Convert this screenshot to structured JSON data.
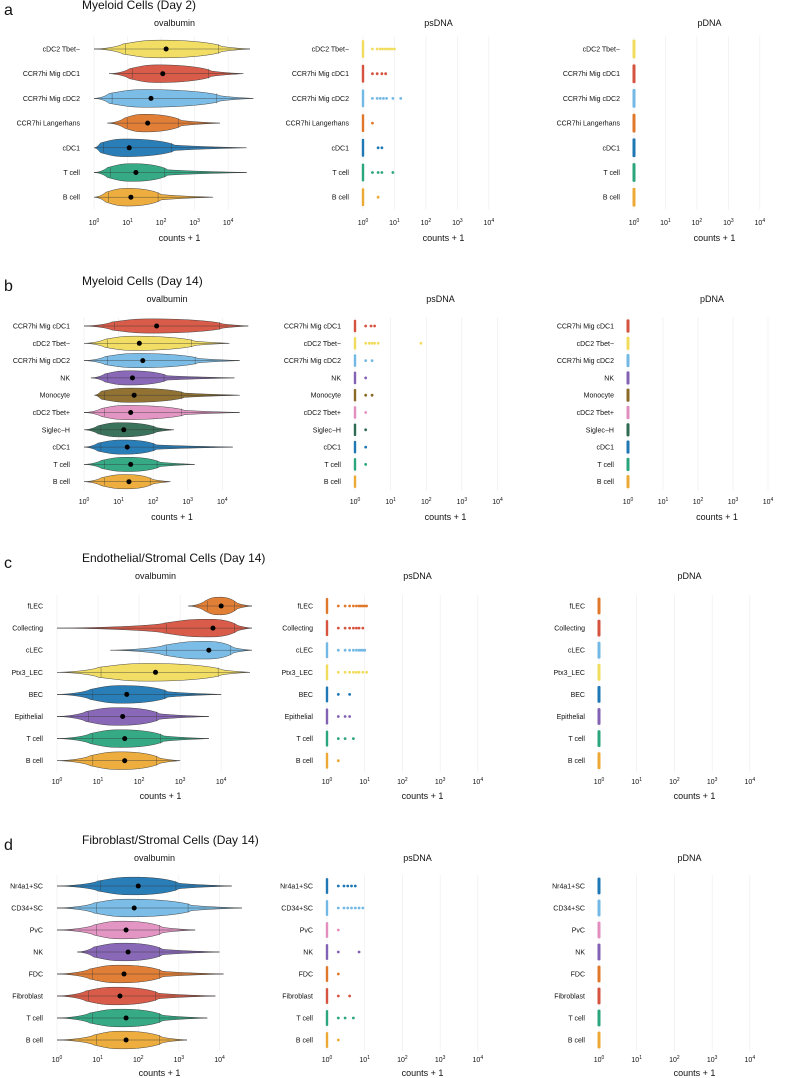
{
  "colors": {
    "yellow": "#f2dc5d",
    "red": "#d6533f",
    "sky": "#74b9e6",
    "orange": "#e0782c",
    "blue": "#1f77b4",
    "green": "#2aa57e",
    "gold": "#eca935",
    "purple": "#8361b3",
    "brown": "#8b6a28",
    "pink": "#e28fc0",
    "dkgreen": "#2f6a52"
  },
  "x_label": "counts + 1",
  "chart_data": [
    {
      "type": "violin",
      "panel_label": "a",
      "title": "Myeloid Cells (Day 2)",
      "xlabel": "counts + 1",
      "xscale": "log10",
      "categories": [
        "cDC2 Tbet−",
        "CCR7hi Mig cDC1",
        "CCR7hi Mig cDC2",
        "CCR7hi Langerhans",
        "cDC1",
        "T cell",
        "B cell"
      ],
      "category_colors": [
        "yellow",
        "red",
        "sky",
        "orange",
        "blue",
        "green",
        "gold"
      ],
      "subplots": [
        {
          "name": "ovalbumin",
          "xlim": [
            0,
            4.8
          ],
          "ticks": [
            "10^0",
            "10^1",
            "10^2",
            "10^3",
            "10^4"
          ],
          "rows": [
            {
              "min": 0,
              "max": 4.65,
              "mean": 2.15,
              "core": [
                0.85,
                3.8
              ]
            },
            {
              "min": 0.45,
              "max": 4.45,
              "mean": 2.05,
              "core": [
                1.05,
                3.5
              ]
            },
            {
              "min": 0,
              "max": 4.75,
              "mean": 1.7,
              "core": [
                0.45,
                3.75
              ]
            },
            {
              "min": 0.4,
              "max": 3.75,
              "mean": 1.6,
              "core": [
                0.9,
                2.6
              ]
            },
            {
              "min": 0,
              "max": 4.55,
              "mean": 1.05,
              "core": [
                0.2,
                2.4
              ]
            },
            {
              "min": 0,
              "max": 4.55,
              "mean": 1.25,
              "core": [
                0.4,
                2.2
              ]
            },
            {
              "min": 0,
              "max": 3.55,
              "mean": 1.1,
              "core": [
                0.35,
                2.0
              ]
            }
          ]
        },
        {
          "name": "psDNA",
          "xlim": [
            0,
            4.8
          ],
          "ticks": [
            "10^0",
            "10^1",
            "10^2",
            "10^3",
            "10^4"
          ],
          "rows": [
            {
              "points": [
                0.3,
                0.45,
                0.55,
                0.62,
                0.7,
                0.78,
                0.85,
                0.92,
                1.0
              ]
            },
            {
              "points": [
                0.3,
                0.45,
                0.6,
                0.72
              ]
            },
            {
              "points": [
                0.3,
                0.45,
                0.55,
                0.65,
                0.75,
                0.95,
                1.2
              ]
            },
            {
              "points": [
                0.3
              ]
            },
            {
              "points": [
                0.48,
                0.6
              ]
            },
            {
              "points": [
                0.3,
                0.48,
                0.6,
                0.95
              ]
            },
            {
              "points": [
                0.48
              ]
            }
          ]
        },
        {
          "name": "pDNA",
          "xlim": [
            0,
            4.8
          ],
          "ticks": [
            "10^0",
            "10^1",
            "10^2",
            "10^3",
            "10^4"
          ],
          "rows": [
            {},
            {},
            {},
            {},
            {},
            {},
            {}
          ]
        }
      ]
    },
    {
      "type": "violin",
      "panel_label": "b",
      "title": "Myeloid Cells (Day 14)",
      "xlabel": "counts + 1",
      "xscale": "log10",
      "categories": [
        "CCR7hi Mig cDC1",
        "cDC2 Tbet−",
        "CCR7hi Mig cDC2",
        "NK",
        "Monocyte",
        "cDC2 Tbet+",
        "Siglec−H",
        "cDC1",
        "T cell",
        "B cell"
      ],
      "category_colors": [
        "red",
        "yellow",
        "sky",
        "purple",
        "brown",
        "pink",
        "dkgreen",
        "blue",
        "green",
        "gold"
      ],
      "subplots": [
        {
          "name": "ovalbumin",
          "xlim": [
            0,
            4.8
          ],
          "ticks": [
            "10^0",
            "10^1",
            "10^2",
            "10^3",
            "10^4"
          ],
          "rows": [
            {
              "min": 0,
              "max": 4.75,
              "mean": 2.1,
              "core": [
                0.8,
                4.0
              ]
            },
            {
              "min": 0,
              "max": 4.2,
              "mean": 1.6,
              "core": [
                0.6,
                3.2
              ]
            },
            {
              "min": 0,
              "max": 4.5,
              "mean": 1.7,
              "core": [
                0.6,
                3.3
              ]
            },
            {
              "min": 0.2,
              "max": 4.35,
              "mean": 1.4,
              "core": [
                0.6,
                2.4
              ]
            },
            {
              "min": 0.3,
              "max": 4.5,
              "mean": 1.45,
              "core": [
                0.5,
                2.9
              ]
            },
            {
              "min": 0,
              "max": 4.5,
              "mean": 1.35,
              "core": [
                0.5,
                2.9
              ]
            },
            {
              "min": 0,
              "max": 2.6,
              "mean": 1.15,
              "core": [
                0.4,
                2.1
              ]
            },
            {
              "min": 0,
              "max": 4.3,
              "mean": 1.25,
              "core": [
                0.4,
                2.1
              ]
            },
            {
              "min": 0,
              "max": 3.2,
              "mean": 1.35,
              "core": [
                0.5,
                2.2
              ]
            },
            {
              "min": 0,
              "max": 2.5,
              "mean": 1.3,
              "core": [
                0.5,
                2.0
              ]
            }
          ]
        },
        {
          "name": "psDNA",
          "xlim": [
            0,
            4.8
          ],
          "ticks": [
            "10^0",
            "10^1",
            "10^2",
            "10^3",
            "10^4"
          ],
          "rows": [
            {
              "points": [
                0.3,
                0.45,
                0.55
              ]
            },
            {
              "points": [
                0.3,
                0.4,
                0.48,
                0.55,
                0.65,
                1.85
              ]
            },
            {
              "points": [
                0.3,
                0.48
              ]
            },
            {
              "points": [
                0.3
              ]
            },
            {
              "points": [
                0.3,
                0.48
              ]
            },
            {
              "points": [
                0.3
              ]
            },
            {
              "points": [
                0.3
              ]
            },
            {
              "points": [
                0.3
              ]
            },
            {
              "points": [
                0.3
              ]
            },
            {
              "points": []
            }
          ]
        },
        {
          "name": "pDNA",
          "xlim": [
            0,
            4.8
          ],
          "ticks": [
            "10^0",
            "10^1",
            "10^2",
            "10^3",
            "10^4"
          ],
          "rows": [
            {},
            {},
            {},
            {},
            {},
            {},
            {},
            {},
            {},
            {}
          ]
        }
      ]
    },
    {
      "type": "violin",
      "panel_label": "c",
      "title": "Endothelial/Stromal Cells (Day 14)",
      "xlabel": "counts + 1",
      "xscale": "log10",
      "categories": [
        "fLEC",
        "Collecting",
        "cLEC",
        "Ptx3_LEC",
        "BEC",
        "Epithelial",
        "T cell",
        "B cell"
      ],
      "category_colors": [
        "orange",
        "red",
        "sky",
        "yellow",
        "blue",
        "purple",
        "green",
        "gold"
      ],
      "subplots": [
        {
          "name": "ovalbumin",
          "xlim": [
            0,
            4.8
          ],
          "ticks": [
            "10^0",
            "10^1",
            "10^2",
            "10^3",
            "10^4"
          ],
          "rows": [
            {
              "min": 3.2,
              "max": 4.75,
              "mean": 4.0,
              "core": [
                3.6,
                4.4
              ]
            },
            {
              "min": 0,
              "max": 4.75,
              "mean": 3.8,
              "core": [
                2.6,
                4.4
              ]
            },
            {
              "min": 1.3,
              "max": 4.75,
              "mean": 3.7,
              "core": [
                2.6,
                4.3
              ]
            },
            {
              "min": 0,
              "max": 4.7,
              "mean": 2.4,
              "core": [
                1.0,
                4.0
              ]
            },
            {
              "min": 0,
              "max": 4.0,
              "mean": 1.7,
              "core": [
                0.8,
                2.7
              ]
            },
            {
              "min": 0,
              "max": 3.7,
              "mean": 1.6,
              "core": [
                0.7,
                2.5
              ]
            },
            {
              "min": 0,
              "max": 3.7,
              "mean": 1.65,
              "core": [
                0.8,
                2.6
              ]
            },
            {
              "min": 0,
              "max": 3.0,
              "mean": 1.65,
              "core": [
                0.8,
                2.5
              ]
            }
          ]
        },
        {
          "name": "psDNA",
          "xlim": [
            0,
            4.8
          ],
          "ticks": [
            "10^0",
            "10^1",
            "10^2",
            "10^3",
            "10^4"
          ],
          "rows": [
            {
              "points": [
                0.3,
                0.48,
                0.6,
                0.7,
                0.78,
                0.85,
                0.9,
                0.95,
                1.0,
                1.05
              ]
            },
            {
              "points": [
                0.3,
                0.48,
                0.6,
                0.7,
                0.78,
                0.85,
                0.95
              ]
            },
            {
              "points": [
                0.3,
                0.48,
                0.6,
                0.7,
                0.78,
                0.85,
                0.9,
                0.95,
                1.0
              ]
            },
            {
              "points": [
                0.3,
                0.48,
                0.6,
                0.7,
                0.78,
                0.85,
                0.95,
                1.05
              ]
            },
            {
              "points": [
                0.3,
                0.6
              ]
            },
            {
              "points": [
                0.3,
                0.48,
                0.6
              ]
            },
            {
              "points": [
                0.3,
                0.48,
                0.7
              ]
            },
            {
              "points": [
                0.3
              ]
            }
          ]
        },
        {
          "name": "pDNA",
          "xlim": [
            0,
            4.8
          ],
          "ticks": [
            "10^0",
            "10^1",
            "10^2",
            "10^3",
            "10^4"
          ],
          "rows": [
            {},
            {},
            {},
            {},
            {},
            {},
            {},
            {}
          ]
        }
      ]
    },
    {
      "type": "violin",
      "panel_label": "d",
      "title": "Fibroblast/Stromal Cells (Day 14)",
      "xlabel": "counts + 1",
      "xscale": "log10",
      "categories": [
        "Nr4a1+SC",
        "CD34+SC",
        "PvC",
        "NK",
        "FDC",
        "Fibroblast",
        "T cell",
        "B cell"
      ],
      "category_colors": [
        "blue",
        "sky",
        "pink",
        "purple",
        "orange",
        "red",
        "green",
        "gold"
      ],
      "subplots": [
        {
          "name": "ovalbumin",
          "xlim": [
            0,
            4.8
          ],
          "ticks": [
            "10^0",
            "10^1",
            "10^2",
            "10^3",
            "10^4"
          ],
          "rows": [
            {
              "min": 0,
              "max": 4.3,
              "mean": 2.0,
              "core": [
                1.0,
                3.0
              ]
            },
            {
              "min": 0,
              "max": 4.55,
              "mean": 1.9,
              "core": [
                0.9,
                3.3
              ]
            },
            {
              "min": 0,
              "max": 3.4,
              "mean": 1.7,
              "core": [
                0.9,
                2.6
              ]
            },
            {
              "min": 0.5,
              "max": 4.0,
              "mean": 1.75,
              "core": [
                0.9,
                2.6
              ]
            },
            {
              "min": 0,
              "max": 4.1,
              "mean": 1.65,
              "core": [
                0.8,
                2.6
              ]
            },
            {
              "min": 0,
              "max": 3.9,
              "mean": 1.55,
              "core": [
                0.7,
                2.5
              ]
            },
            {
              "min": 0,
              "max": 3.7,
              "mean": 1.7,
              "core": [
                0.8,
                2.6
              ]
            },
            {
              "min": 0,
              "max": 3.2,
              "mean": 1.7,
              "core": [
                0.9,
                2.6
              ]
            }
          ]
        },
        {
          "name": "psDNA",
          "xlim": [
            0,
            4.8
          ],
          "ticks": [
            "10^0",
            "10^1",
            "10^2",
            "10^3",
            "10^4"
          ],
          "rows": [
            {
              "points": [
                0.3,
                0.45,
                0.55,
                0.65,
                0.75
              ]
            },
            {
              "points": [
                0.3,
                0.45,
                0.55,
                0.65,
                0.75,
                0.85,
                0.95
              ]
            },
            {
              "points": [
                0.3
              ]
            },
            {
              "points": [
                0.3,
                0.85
              ]
            },
            {
              "points": [
                0.3
              ]
            },
            {
              "points": [
                0.3,
                0.6
              ]
            },
            {
              "points": [
                0.3,
                0.48,
                0.7
              ]
            },
            {
              "points": [
                0.3
              ]
            }
          ]
        },
        {
          "name": "pDNA",
          "xlim": [
            0,
            4.8
          ],
          "ticks": [
            "10^0",
            "10^1",
            "10^2",
            "10^3",
            "10^4"
          ],
          "rows": [
            {},
            {},
            {},
            {},
            {},
            {},
            {},
            {}
          ]
        }
      ]
    }
  ]
}
